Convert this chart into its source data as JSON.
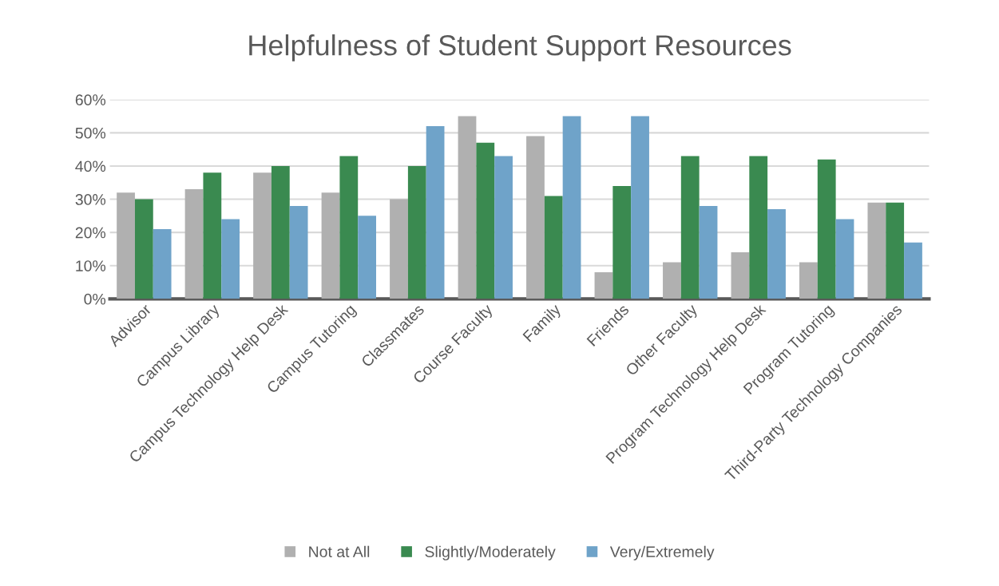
{
  "chart_data": {
    "type": "bar",
    "title": "Helpfulness of Student Support Resources",
    "categories": [
      "Advisor",
      "Campus Library",
      "Campus Technology Help Desk",
      "Campus Tutoring",
      "Classmates",
      "Course Faculty",
      "Family",
      "Friends",
      "Other Faculty",
      "Program Technology Help Desk",
      "Program Tutoring",
      "Third-Party Technology Companies"
    ],
    "series": [
      {
        "name": "Not at All",
        "color": "#b0b0b0",
        "values": [
          32,
          33,
          38,
          32,
          30,
          55,
          49,
          8,
          11,
          14,
          11,
          29
        ]
      },
      {
        "name": "Slightly/Moderately",
        "color": "#3a8a50",
        "values": [
          30,
          38,
          40,
          43,
          40,
          47,
          31,
          34,
          43,
          43,
          42,
          29
        ]
      },
      {
        "name": "Very/Extremely",
        "color": "#6fa3c9",
        "values": [
          21,
          24,
          28,
          25,
          52,
          43,
          55,
          55,
          28,
          27,
          24,
          17
        ]
      }
    ],
    "ylim": [
      0,
      60
    ],
    "yticks": [
      {
        "value": 0,
        "label": "0%"
      },
      {
        "value": 10,
        "label": "10%"
      },
      {
        "value": 20,
        "label": "20%"
      },
      {
        "value": 30,
        "label": "30%"
      },
      {
        "value": 40,
        "label": "40%"
      },
      {
        "value": 50,
        "label": "50%"
      },
      {
        "value": 60,
        "label": "60%"
      }
    ],
    "grid": "y",
    "legend": "bottom"
  }
}
